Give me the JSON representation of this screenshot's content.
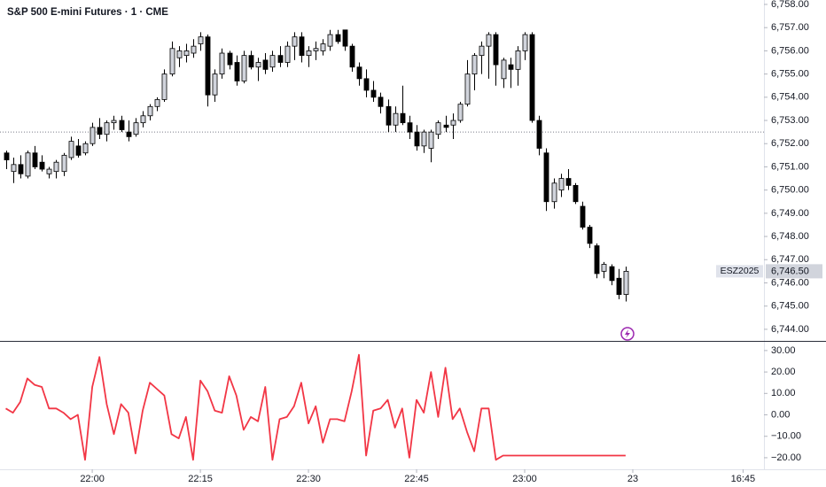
{
  "chart_data": [
    {
      "type": "candlestick",
      "title": "S&P 500 E-mini Futures · 1 · CME",
      "up_color": "#d1d4dc",
      "down_color": "#000000",
      "wick_color": "#000000",
      "xlim": [
        -0.8,
        105.2
      ],
      "ylim": [
        6743.5,
        6758.19
      ],
      "yticks": [
        {
          "value": 6758,
          "label": "6,758.00"
        },
        {
          "value": 6757,
          "label": "6,757.00"
        },
        {
          "value": 6756,
          "label": "6,756.00"
        },
        {
          "value": 6755,
          "label": "6,755.00"
        },
        {
          "value": 6754,
          "label": "6,754.00"
        },
        {
          "value": 6753,
          "label": "6,753.00"
        },
        {
          "value": 6752,
          "label": "6,752.00"
        },
        {
          "value": 6751,
          "label": "6,751.00"
        },
        {
          "value": 6750,
          "label": "6,750.00"
        },
        {
          "value": 6749,
          "label": "6,749.00"
        },
        {
          "value": 6748,
          "label": "6,748.00"
        },
        {
          "value": 6747,
          "label": "6,747.00"
        },
        {
          "value": 6746,
          "label": "6,746.00"
        },
        {
          "value": 6745,
          "label": "6,745.00"
        },
        {
          "value": 6744,
          "label": "6,744.00"
        }
      ],
      "reference_line": 6752.5,
      "last_price_name": "ESZ2025",
      "last_price": {
        "value": 6746.5,
        "label": "6,746.50"
      },
      "candles": [
        {
          "o": 6751.6,
          "h": 6751.7,
          "l": 6750.9,
          "c": 6751.3
        },
        {
          "o": 6750.8,
          "h": 6751.4,
          "l": 6750.3,
          "c": 6751.1
        },
        {
          "o": 6751.1,
          "h": 6751.5,
          "l": 6750.5,
          "c": 6750.7
        },
        {
          "o": 6750.6,
          "h": 6751.7,
          "l": 6750.5,
          "c": 6751.6
        },
        {
          "o": 6751.6,
          "h": 6751.9,
          "l": 6750.9,
          "c": 6751.0
        },
        {
          "o": 6751.2,
          "h": 6751.5,
          "l": 6750.8,
          "c": 6750.9
        },
        {
          "o": 6750.7,
          "h": 6751.0,
          "l": 6750.5,
          "c": 6750.9
        },
        {
          "o": 6750.8,
          "h": 6751.3,
          "l": 6750.5,
          "c": 6751.2
        },
        {
          "o": 6750.8,
          "h": 6751.6,
          "l": 6750.6,
          "c": 6751.5
        },
        {
          "o": 6751.4,
          "h": 6752.3,
          "l": 6751.3,
          "c": 6752.1
        },
        {
          "o": 6751.9,
          "h": 6752.2,
          "l": 6751.4,
          "c": 6751.5
        },
        {
          "o": 6751.6,
          "h": 6752.1,
          "l": 6751.5,
          "c": 6752.0
        },
        {
          "o": 6752.0,
          "h": 6752.9,
          "l": 6751.9,
          "c": 6752.7
        },
        {
          "o": 6752.7,
          "h": 6753.1,
          "l": 6752.2,
          "c": 6752.4
        },
        {
          "o": 6752.4,
          "h": 6753.0,
          "l": 6752.1,
          "c": 6752.9
        },
        {
          "o": 6752.9,
          "h": 6753.2,
          "l": 6752.6,
          "c": 6753.0
        },
        {
          "o": 6753.0,
          "h": 6753.2,
          "l": 6752.5,
          "c": 6752.6
        },
        {
          "o": 6752.5,
          "h": 6753.0,
          "l": 6752.1,
          "c": 6752.3
        },
        {
          "o": 6752.4,
          "h": 6753.1,
          "l": 6752.3,
          "c": 6752.9
        },
        {
          "o": 6752.9,
          "h": 6753.4,
          "l": 6752.7,
          "c": 6753.2
        },
        {
          "o": 6753.2,
          "h": 6753.7,
          "l": 6753.0,
          "c": 6753.6
        },
        {
          "o": 6753.6,
          "h": 6754.0,
          "l": 6753.4,
          "c": 6753.9
        },
        {
          "o": 6753.9,
          "h": 6755.2,
          "l": 6753.8,
          "c": 6755.0
        },
        {
          "o": 6755.0,
          "h": 6756.4,
          "l": 6754.9,
          "c": 6756.1
        },
        {
          "o": 6755.7,
          "h": 6756.2,
          "l": 6755.3,
          "c": 6756.0
        },
        {
          "o": 6755.8,
          "h": 6756.3,
          "l": 6755.5,
          "c": 6756.0
        },
        {
          "o": 6755.9,
          "h": 6756.5,
          "l": 6755.7,
          "c": 6756.2
        },
        {
          "o": 6756.3,
          "h": 6756.8,
          "l": 6756.0,
          "c": 6756.6
        },
        {
          "o": 6756.6,
          "h": 6756.7,
          "l": 6753.6,
          "c": 6754.1
        },
        {
          "o": 6754.1,
          "h": 6755.2,
          "l": 6753.8,
          "c": 6755.0
        },
        {
          "o": 6755.0,
          "h": 6756.1,
          "l": 6754.8,
          "c": 6755.9
        },
        {
          "o": 6755.9,
          "h": 6756.0,
          "l": 6755.2,
          "c": 6755.4
        },
        {
          "o": 6755.5,
          "h": 6755.8,
          "l": 6754.5,
          "c": 6754.7
        },
        {
          "o": 6754.7,
          "h": 6756.0,
          "l": 6754.6,
          "c": 6755.8
        },
        {
          "o": 6755.8,
          "h": 6756.0,
          "l": 6755.2,
          "c": 6755.3
        },
        {
          "o": 6755.3,
          "h": 6755.7,
          "l": 6754.7,
          "c": 6755.5
        },
        {
          "o": 6755.6,
          "h": 6755.9,
          "l": 6755.0,
          "c": 6755.2
        },
        {
          "o": 6755.3,
          "h": 6756.0,
          "l": 6755.1,
          "c": 6755.8
        },
        {
          "o": 6755.8,
          "h": 6756.2,
          "l": 6755.3,
          "c": 6755.5
        },
        {
          "o": 6755.5,
          "h": 6756.4,
          "l": 6755.3,
          "c": 6756.2
        },
        {
          "o": 6756.2,
          "h": 6756.8,
          "l": 6755.6,
          "c": 6756.6
        },
        {
          "o": 6756.6,
          "h": 6756.8,
          "l": 6755.5,
          "c": 6755.8
        },
        {
          "o": 6755.8,
          "h": 6756.2,
          "l": 6755.3,
          "c": 6756.0
        },
        {
          "o": 6756.0,
          "h": 6756.4,
          "l": 6755.6,
          "c": 6756.1
        },
        {
          "o": 6756.0,
          "h": 6756.5,
          "l": 6755.8,
          "c": 6756.3
        },
        {
          "o": 6756.2,
          "h": 6756.9,
          "l": 6756.0,
          "c": 6756.7
        },
        {
          "o": 6756.7,
          "h": 6756.9,
          "l": 6756.3,
          "c": 6756.4
        },
        {
          "o": 6756.9,
          "h": 6756.9,
          "l": 6756.0,
          "c": 6756.2
        },
        {
          "o": 6756.2,
          "h": 6756.3,
          "l": 6755.1,
          "c": 6755.3
        },
        {
          "o": 6755.3,
          "h": 6755.5,
          "l": 6754.5,
          "c": 6754.8
        },
        {
          "o": 6754.8,
          "h": 6755.2,
          "l": 6754.0,
          "c": 6754.3
        },
        {
          "o": 6754.3,
          "h": 6754.7,
          "l": 6753.8,
          "c": 6754.0
        },
        {
          "o": 6754.0,
          "h": 6754.2,
          "l": 6753.3,
          "c": 6753.6
        },
        {
          "o": 6753.6,
          "h": 6753.9,
          "l": 6752.5,
          "c": 6752.8
        },
        {
          "o": 6752.8,
          "h": 6753.6,
          "l": 6752.5,
          "c": 6753.3
        },
        {
          "o": 6753.3,
          "h": 6754.5,
          "l": 6752.8,
          "c": 6752.9
        },
        {
          "o": 6752.9,
          "h": 6753.2,
          "l": 6752.2,
          "c": 6752.5
        },
        {
          "o": 6752.5,
          "h": 6752.8,
          "l": 6751.7,
          "c": 6751.9
        },
        {
          "o": 6751.9,
          "h": 6752.6,
          "l": 6751.6,
          "c": 6752.5
        },
        {
          "o": 6751.8,
          "h": 6752.6,
          "l": 6751.2,
          "c": 6752.5
        },
        {
          "o": 6752.4,
          "h": 6753.0,
          "l": 6752.2,
          "c": 6752.9
        },
        {
          "o": 6752.8,
          "h": 6753.2,
          "l": 6752.5,
          "c": 6752.7
        },
        {
          "o": 6752.8,
          "h": 6753.3,
          "l": 6752.2,
          "c": 6753.0
        },
        {
          "o": 6753.0,
          "h": 6753.8,
          "l": 6752.9,
          "c": 6753.7
        },
        {
          "o": 6753.7,
          "h": 6755.6,
          "l": 6753.6,
          "c": 6755.0
        },
        {
          "o": 6755.0,
          "h": 6755.9,
          "l": 6754.3,
          "c": 6755.8
        },
        {
          "o": 6755.8,
          "h": 6756.4,
          "l": 6755.0,
          "c": 6756.2
        },
        {
          "o": 6756.2,
          "h": 6756.8,
          "l": 6754.8,
          "c": 6756.7
        },
        {
          "o": 6756.7,
          "h": 6756.8,
          "l": 6754.5,
          "c": 6755.4
        },
        {
          "o": 6754.8,
          "h": 6755.7,
          "l": 6754.4,
          "c": 6755.6
        },
        {
          "o": 6755.4,
          "h": 6755.7,
          "l": 6754.4,
          "c": 6755.2
        },
        {
          "o": 6755.2,
          "h": 6756.2,
          "l": 6754.5,
          "c": 6756.0
        },
        {
          "o": 6756.0,
          "h": 6756.8,
          "l": 6755.6,
          "c": 6756.7
        },
        {
          "o": 6756.7,
          "h": 6756.8,
          "l": 6752.9,
          "c": 6753.0
        },
        {
          "o": 6753.0,
          "h": 6753.2,
          "l": 6751.5,
          "c": 6751.8
        },
        {
          "o": 6751.6,
          "h": 6751.8,
          "l": 6749.1,
          "c": 6749.5
        },
        {
          "o": 6749.5,
          "h": 6750.5,
          "l": 6749.2,
          "c": 6750.3
        },
        {
          "o": 6750.0,
          "h": 6750.7,
          "l": 6749.7,
          "c": 6750.5
        },
        {
          "o": 6750.5,
          "h": 6750.9,
          "l": 6750.0,
          "c": 6750.2
        },
        {
          "o": 6750.2,
          "h": 6750.3,
          "l": 6749.4,
          "c": 6749.5
        },
        {
          "o": 6749.3,
          "h": 6749.5,
          "l": 6748.3,
          "c": 6748.4
        },
        {
          "o": 6748.4,
          "h": 6748.5,
          "l": 6747.5,
          "c": 6747.7
        },
        {
          "o": 6747.6,
          "h": 6747.7,
          "l": 6746.2,
          "c": 6746.4
        },
        {
          "o": 6746.5,
          "h": 6746.9,
          "l": 6746.2,
          "c": 6746.8
        },
        {
          "o": 6746.7,
          "h": 6746.8,
          "l": 6745.9,
          "c": 6746.1
        },
        {
          "o": 6746.2,
          "h": 6746.6,
          "l": 6745.3,
          "c": 6745.5
        },
        {
          "o": 6745.5,
          "h": 6746.7,
          "l": 6745.2,
          "c": 6746.5
        }
      ]
    },
    {
      "type": "line",
      "color": "#f23645",
      "xlim": [
        -0.8,
        105.2
      ],
      "ylim": [
        -25.4,
        34.5
      ],
      "yticks": [
        {
          "value": 30,
          "label": "30.00"
        },
        {
          "value": 20,
          "label": "20.00"
        },
        {
          "value": 10,
          "label": "10.00"
        },
        {
          "value": 0,
          "label": "0.00"
        },
        {
          "value": -10,
          "label": "−10.00"
        },
        {
          "value": -20,
          "label": "−20.00"
        }
      ],
      "xticks": [
        {
          "value": 12,
          "label": "22:00"
        },
        {
          "value": 27,
          "label": "22:15"
        },
        {
          "value": 42,
          "label": "22:30"
        },
        {
          "value": 57,
          "label": "22:45"
        },
        {
          "value": 72,
          "label": "23:00"
        },
        {
          "value": 87,
          "label": "23"
        },
        {
          "value": 102.3,
          "label": "16:45"
        }
      ],
      "values": [
        3,
        1,
        6,
        17,
        14,
        13,
        3,
        3,
        1,
        -2,
        0,
        -21,
        13,
        27,
        5,
        -9,
        5,
        1,
        -18,
        2,
        15,
        12,
        9,
        -9,
        -11,
        -1,
        -21,
        16,
        11,
        2,
        1,
        18,
        9,
        -7,
        -1,
        -3,
        13,
        -21,
        -2,
        -1,
        4,
        15,
        -4,
        4,
        -13,
        -2,
        -2,
        -3,
        11,
        28,
        -19,
        2,
        3,
        7,
        -6,
        3,
        -20,
        7,
        1,
        20,
        -1,
        22,
        -2,
        3,
        -8,
        -17,
        3,
        3,
        -21,
        -19,
        -19,
        -19,
        -19,
        -19,
        -19,
        -19,
        -19,
        -19,
        -19,
        -19,
        -19,
        -19,
        -19,
        -19,
        -19,
        -19,
        -19
      ]
    }
  ]
}
